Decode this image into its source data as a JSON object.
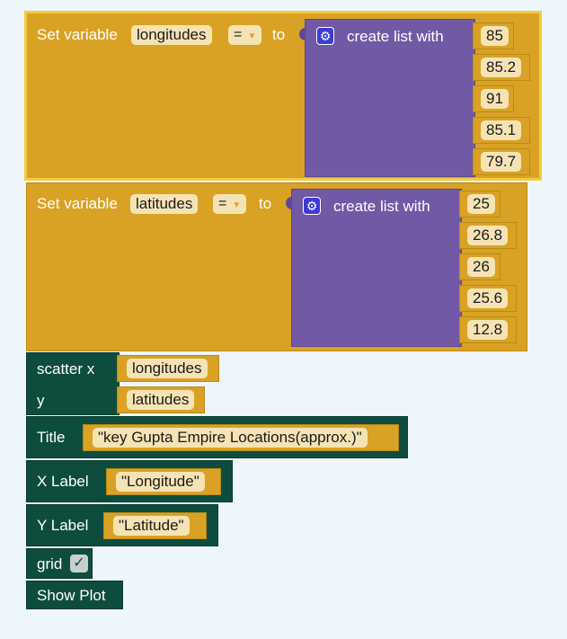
{
  "blocks": {
    "set_lon": {
      "label": "Set variable",
      "var_name": "longitudes",
      "op": "=",
      "to": "to",
      "list_label": "create list with",
      "items": [
        "85",
        "85.2",
        "91",
        "85.1",
        "79.7"
      ]
    },
    "set_lat": {
      "label": "Set variable",
      "var_name": "latitudes",
      "op": "=",
      "to": "to",
      "list_label": "create list with",
      "items": [
        "25",
        "26.8",
        "26",
        "25.6",
        "12.8"
      ]
    },
    "scatter": {
      "x_label": "scatter x",
      "x_value": "longitudes",
      "y_label": "y",
      "y_value": "latitudes"
    },
    "title": {
      "label": "Title",
      "value": "\"key Gupta Empire Locations(approx.)\""
    },
    "xlabel": {
      "label": "X Label",
      "value": "\"Longitude\""
    },
    "ylabel": {
      "label": "Y Label",
      "value": "\"Latitude\""
    },
    "grid": {
      "label": "grid",
      "checked": "✓"
    },
    "show": {
      "label": "Show Plot"
    }
  },
  "colors": {
    "variable_block": "#d9a224",
    "list_block": "#7159a5",
    "plot_block": "#0e4d3d",
    "field_bg": "#f6e3b4",
    "selected_outline": "#f6c93c",
    "workspace_bg": "#eef6fd"
  },
  "icons": {
    "list_settings": "gear-icon",
    "grid_checkbox": "checkmark-icon"
  }
}
